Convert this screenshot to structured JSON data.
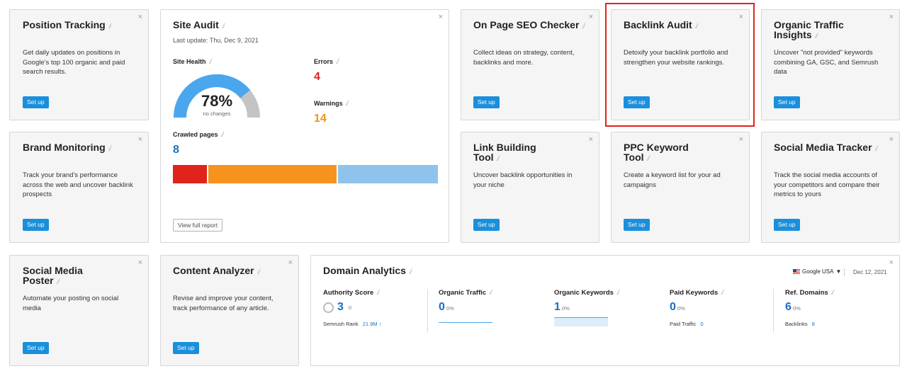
{
  "colors": {
    "accent": "#1a8fdc",
    "error": "#e0231b",
    "warning": "#f5931e",
    "highlight": "#e0231b"
  },
  "info_glyph": "ⅈ",
  "close_glyph": "×",
  "position_tracking": {
    "title": "Position Tracking",
    "desc_lines": [
      "Get daily updates on positions in",
      "Google's top 100 organic and paid",
      "search results."
    ],
    "button": "Set up"
  },
  "site_audit": {
    "title": "Site Audit",
    "last_update": "Last update: Thu, Dec 9, 2021",
    "health_label": "Site Health",
    "health_value": "78%",
    "health_sub": "no changes",
    "health_fraction": 0.78,
    "errors_label": "Errors",
    "errors_value": "4",
    "warnings_label": "Warnings",
    "warnings_value": "14",
    "crawled_label": "Crawled pages",
    "crawled_value": "8",
    "crawl_bar": [
      {
        "name": "errors",
        "color": "#e0231b",
        "fraction": 0.13
      },
      {
        "name": "warnings",
        "color": "#f5931e",
        "fraction": 0.49
      },
      {
        "name": "ok",
        "color": "#8fc3ec",
        "fraction": 0.38
      }
    ],
    "button": "View full report"
  },
  "on_page_seo": {
    "title": "On Page SEO Checker",
    "desc_lines": [
      "Collect ideas on strategy, content,",
      "backlinks and more."
    ],
    "button": "Set up"
  },
  "backlink_audit": {
    "title": "Backlink Audit",
    "desc_lines": [
      "Detoxify your backlink portfolio and",
      "strengthen your website rankings."
    ],
    "button": "Set up"
  },
  "organic_traffic_insights": {
    "title_lines": [
      "Organic Traffic",
      "Insights"
    ],
    "desc_lines": [
      "Uncover \"not provided\" keywords",
      "combining GA, GSC, and Semrush",
      "data"
    ],
    "button": "Set up"
  },
  "brand_monitoring": {
    "title": "Brand Monitoring",
    "desc_lines": [
      "Track your brand's performance",
      "across the web and uncover backlink",
      "prospects"
    ],
    "button": "Set up"
  },
  "link_building": {
    "title_lines": [
      "Link Building",
      "Tool"
    ],
    "desc_lines": [
      "Uncover backlink opportunities in",
      "your niche"
    ],
    "button": "Set up"
  },
  "ppc_keyword": {
    "title_lines": [
      "PPC Keyword",
      "Tool"
    ],
    "desc_lines": [
      "Create a keyword list for your ad",
      "campaigns"
    ],
    "button": "Set up"
  },
  "social_media_tracker": {
    "title": "Social Media Tracker",
    "desc_lines": [
      "Track the social media accounts of",
      "your competitors and compare their",
      "metrics to yours"
    ],
    "button": "Set up"
  },
  "social_media_poster": {
    "title_lines": [
      "Social Media",
      "Poster"
    ],
    "desc_lines": [
      "Automate your posting on social",
      "media"
    ],
    "button": "Set up"
  },
  "content_analyzer": {
    "title": "Content Analyzer",
    "desc_lines": [
      "Revise and improve your content,",
      "track performance of any article."
    ],
    "button": "Set up"
  },
  "domain_analytics": {
    "title": "Domain Analytics",
    "database": "Google USA",
    "date": "Dec 12, 2021",
    "authority": {
      "label": "Authority Score",
      "value": "3",
      "change": "0",
      "rank_label": "Semrush Rank",
      "rank_value": "21.9M ↑"
    },
    "organic_traffic": {
      "label": "Organic Traffic",
      "value": "0",
      "pct": "0%"
    },
    "organic_keywords": {
      "label": "Organic Keywords",
      "value": "1",
      "pct": "0%"
    },
    "paid_keywords": {
      "label": "Paid Keywords",
      "value": "0",
      "pct": "0%",
      "sub_label": "Paid Traffic",
      "sub_value": "0"
    },
    "ref_domains": {
      "label": "Ref. Domains",
      "value": "6",
      "pct": "0%",
      "sub_label": "Backlinks",
      "sub_value": "8"
    }
  }
}
